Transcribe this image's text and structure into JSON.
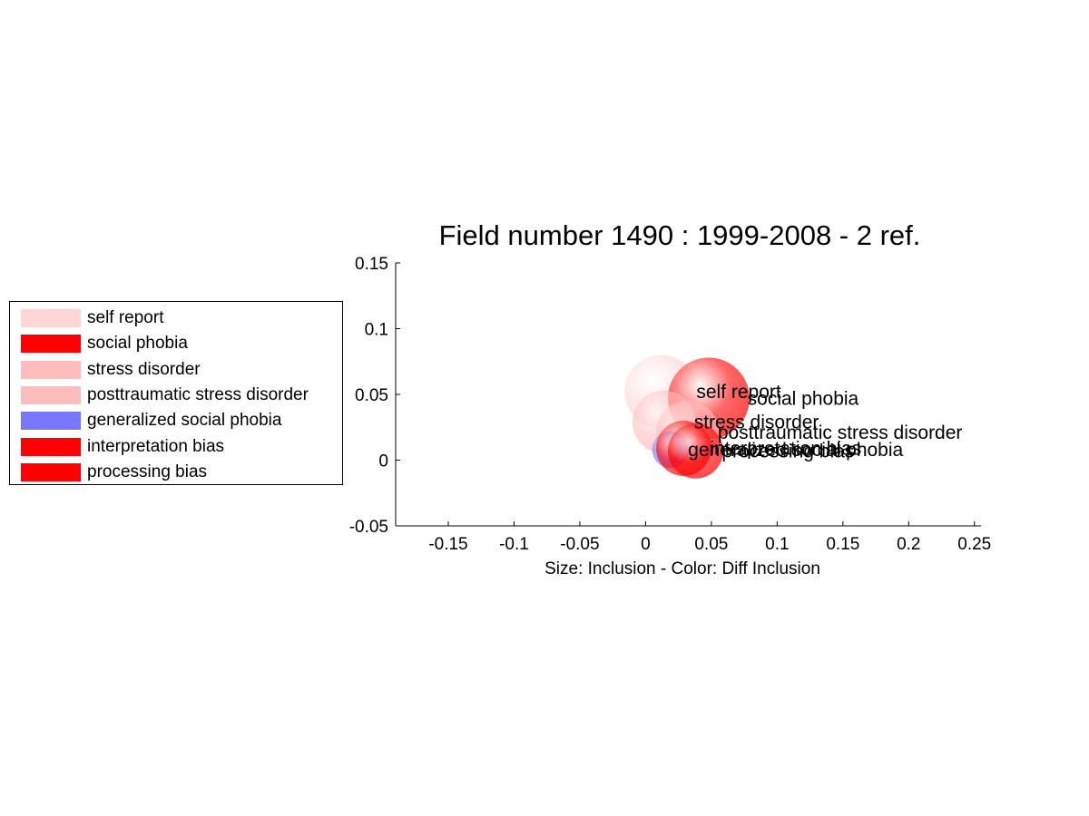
{
  "chart_data": {
    "type": "scatter",
    "title": "Field number 1490 : 1999-2008  - 2 ref.",
    "xlabel": "Size: Inclusion - Color: Diff Inclusion",
    "ylabel": "",
    "xlim": [
      -0.19,
      0.255
    ],
    "ylim": [
      -0.05,
      0.15
    ],
    "xticks": [
      -0.15,
      -0.1,
      -0.05,
      0,
      0.05,
      0.1,
      0.15,
      0.2,
      0.25
    ],
    "xtick_labels": [
      "-0.15",
      "-0.1",
      "-0.05",
      "0",
      "0.05",
      "0.1",
      "0.15",
      "0.2",
      "0.25"
    ],
    "yticks": [
      -0.05,
      0,
      0.05,
      0.1,
      0.15
    ],
    "ytick_labels": [
      "-0.05",
      "0",
      "0.05",
      "0.1",
      "0.15"
    ],
    "grid": false,
    "legend_position": "left",
    "points": [
      {
        "label": "self report",
        "x": 0.012,
        "y": 0.052,
        "size": 0.028,
        "color": "#ffd6d6"
      },
      {
        "label": "social phobia",
        "x": 0.048,
        "y": 0.047,
        "size": 0.031,
        "color": "#ff0000"
      },
      {
        "label": "stress disorder",
        "x": 0.014,
        "y": 0.029,
        "size": 0.024,
        "color": "#ffbcbc"
      },
      {
        "label": "posttraumatic stress disorder",
        "x": 0.032,
        "y": 0.021,
        "size": 0.024,
        "color": "#ffbcbc"
      },
      {
        "label": "generalized social phobia",
        "x": 0.019,
        "y": 0.008,
        "size": 0.014,
        "color": "#7777ff"
      },
      {
        "label": "interpretation bias",
        "x": 0.029,
        "y": 0.009,
        "size": 0.021,
        "color": "#ff0000"
      },
      {
        "label": "processing bias",
        "x": 0.038,
        "y": 0.007,
        "size": 0.021,
        "color": "#ff0000"
      }
    ]
  }
}
